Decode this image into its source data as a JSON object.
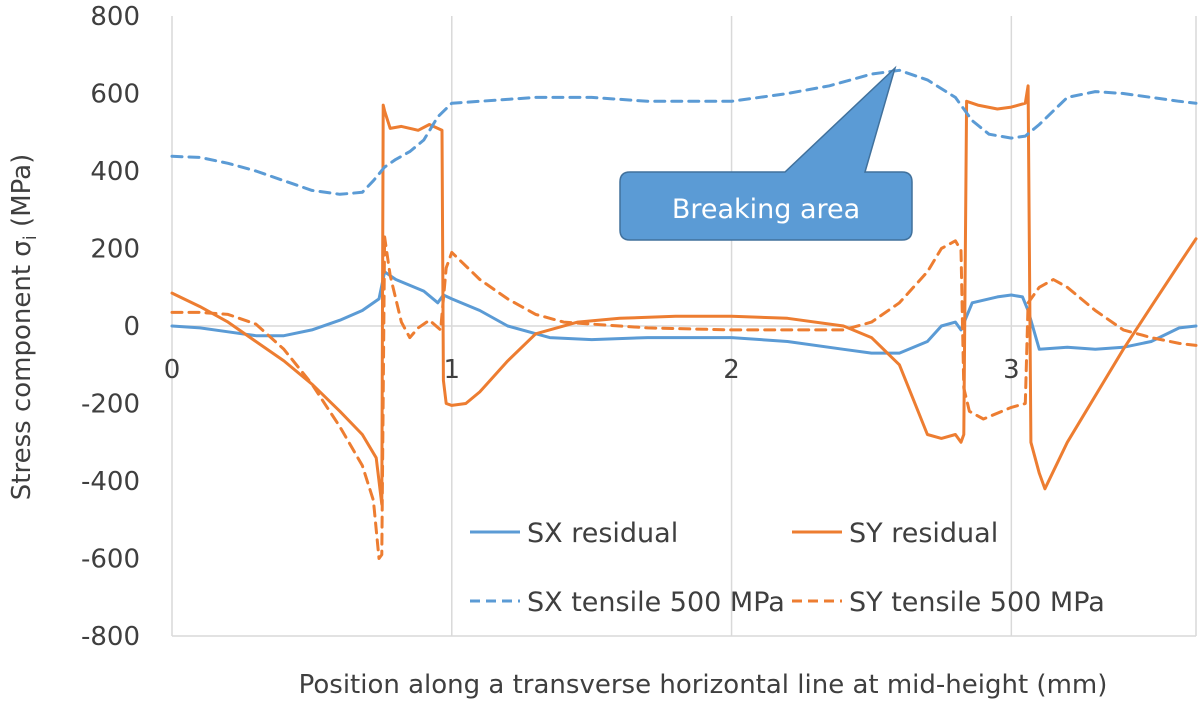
{
  "chart_data": {
    "type": "line",
    "xlabel": "Position along a transverse horizontal line at mid-height (mm)",
    "ylabel_main": "Stress component σ",
    "ylabel_sub": "i",
    "ylabel_unit": " (MPa)",
    "xlim": [
      0,
      3.66
    ],
    "ylim": [
      -800,
      800
    ],
    "x_ticks": [
      0,
      1,
      2,
      3
    ],
    "x_tick_labels": [
      "0",
      "1",
      "2",
      "3"
    ],
    "y_ticks": [
      800,
      600,
      400,
      200,
      0,
      -200,
      -400,
      -600,
      -800
    ],
    "y_tick_labels": [
      "800",
      "600",
      "400",
      "200",
      "0",
      "-200",
      "-400",
      "-600",
      "-800"
    ],
    "grid": "vertical",
    "legend_position": "bottom-right",
    "annotation": {
      "text": "Breaking area",
      "x": 2.6,
      "y": 660
    },
    "colors": {
      "sx": "#5b9bd5",
      "sy": "#ed7d31",
      "callout_fill": "#5b9bd5",
      "callout_border": "#41719c",
      "grid": "#d9d9d9"
    },
    "series": [
      {
        "name": "SX residual",
        "color": "#5b9bd5",
        "dash": "solid",
        "x": [
          0,
          0.1,
          0.2,
          0.3,
          0.4,
          0.5,
          0.6,
          0.68,
          0.74,
          0.76,
          0.8,
          0.9,
          0.95,
          0.97,
          1.0,
          1.1,
          1.2,
          1.35,
          1.5,
          1.7,
          2.0,
          2.2,
          2.4,
          2.5,
          2.6,
          2.7,
          2.75,
          2.8,
          2.82,
          2.86,
          2.95,
          3.0,
          3.04,
          3.06,
          3.1,
          3.2,
          3.3,
          3.4,
          3.5,
          3.6,
          3.66
        ],
        "y": [
          0,
          -5,
          -15,
          -25,
          -25,
          -10,
          15,
          40,
          70,
          140,
          120,
          90,
          60,
          80,
          70,
          40,
          0,
          -30,
          -35,
          -30,
          -30,
          -40,
          -60,
          -70,
          -70,
          -40,
          0,
          10,
          -10,
          60,
          75,
          80,
          75,
          40,
          -60,
          -55,
          -60,
          -55,
          -40,
          -5,
          0
        ]
      },
      {
        "name": "SY residual",
        "color": "#ed7d31",
        "dash": "solid",
        "x": [
          0,
          0.1,
          0.2,
          0.3,
          0.4,
          0.5,
          0.6,
          0.68,
          0.73,
          0.75,
          0.755,
          0.76,
          0.78,
          0.82,
          0.88,
          0.92,
          0.965,
          0.97,
          0.98,
          1.0,
          1.05,
          1.1,
          1.2,
          1.3,
          1.45,
          1.6,
          1.8,
          2.0,
          2.2,
          2.4,
          2.5,
          2.6,
          2.7,
          2.75,
          2.8,
          2.82,
          2.83,
          2.84,
          2.88,
          2.95,
          3.0,
          3.05,
          3.06,
          3.07,
          3.1,
          3.12,
          3.2,
          3.3,
          3.4,
          3.5,
          3.6,
          3.66
        ],
        "y": [
          85,
          50,
          10,
          -40,
          -90,
          -150,
          -220,
          -280,
          -340,
          -460,
          570,
          555,
          510,
          515,
          505,
          520,
          505,
          -140,
          -200,
          -205,
          -200,
          -170,
          -90,
          -20,
          10,
          20,
          25,
          25,
          20,
          0,
          -30,
          -100,
          -280,
          -290,
          -280,
          -300,
          -280,
          580,
          570,
          560,
          565,
          575,
          620,
          -300,
          -380,
          -420,
          -300,
          -180,
          -60,
          50,
          160,
          225
        ]
      },
      {
        "name": "SX tensile 500 MPa",
        "color": "#5b9bd5",
        "dash": "dashed",
        "x": [
          0,
          0.1,
          0.2,
          0.3,
          0.4,
          0.5,
          0.6,
          0.68,
          0.72,
          0.76,
          0.8,
          0.85,
          0.9,
          0.95,
          1.0,
          1.1,
          1.3,
          1.5,
          1.7,
          2.0,
          2.2,
          2.35,
          2.5,
          2.6,
          2.7,
          2.8,
          2.86,
          2.92,
          3.0,
          3.05,
          3.1,
          3.2,
          3.3,
          3.4,
          3.5,
          3.6,
          3.66
        ],
        "y": [
          438,
          435,
          420,
          400,
          375,
          350,
          340,
          345,
          375,
          410,
          430,
          450,
          480,
          540,
          575,
          580,
          590,
          590,
          580,
          580,
          600,
          620,
          650,
          660,
          635,
          590,
          530,
          495,
          485,
          490,
          520,
          590,
          605,
          600,
          590,
          580,
          575
        ]
      },
      {
        "name": "SY tensile 500 MPa",
        "color": "#ed7d31",
        "dash": "dashed",
        "x": [
          0,
          0.1,
          0.2,
          0.3,
          0.4,
          0.5,
          0.6,
          0.68,
          0.72,
          0.74,
          0.75,
          0.76,
          0.78,
          0.82,
          0.85,
          0.88,
          0.92,
          0.96,
          0.98,
          1.0,
          1.1,
          1.2,
          1.3,
          1.4,
          1.5,
          1.7,
          2.0,
          2.2,
          2.4,
          2.5,
          2.6,
          2.7,
          2.75,
          2.8,
          2.82,
          2.83,
          2.85,
          2.9,
          3.0,
          3.05,
          3.06,
          3.1,
          3.15,
          3.2,
          3.3,
          3.4,
          3.5,
          3.6,
          3.66
        ],
        "y": [
          35,
          35,
          30,
          5,
          -60,
          -150,
          -260,
          -360,
          -450,
          -600,
          -590,
          230,
          130,
          10,
          -30,
          -5,
          15,
          -10,
          150,
          190,
          120,
          70,
          30,
          10,
          5,
          -5,
          -10,
          -10,
          -10,
          10,
          60,
          140,
          200,
          220,
          195,
          -160,
          -220,
          -240,
          -210,
          -200,
          60,
          100,
          120,
          100,
          40,
          -10,
          -30,
          -45,
          -50
        ]
      }
    ]
  }
}
